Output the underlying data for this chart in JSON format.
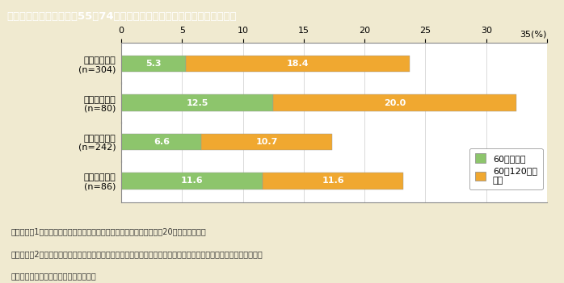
{
  "title": "第１－５図　単身世帯（55～74歳）における低所得層の割合（年間収入）",
  "title_bg_color": "#8B7355",
  "title_text_color": "#FFFFFF",
  "bg_color": "#F0EAD0",
  "chart_bg_color": "#FFFFFF",
  "categories": [
    "女性単身世帯\n(n=304)",
    "うち離別女性\n(n=80)",
    "男性単身世帯\n(n=242)",
    "うち未婚男性\n(n=86)"
  ],
  "green_values": [
    5.3,
    12.5,
    6.6,
    11.6
  ],
  "orange_values": [
    18.4,
    20.0,
    10.7,
    11.6
  ],
  "green_color": "#8DC56C",
  "orange_color": "#F0A830",
  "green_label": "60万円未満",
  "orange_label": "60～120万円\n未満",
  "xlim": [
    0,
    35
  ],
  "xticks": [
    0,
    5,
    10,
    15,
    20,
    25,
    30,
    35
  ],
  "footnote_line1": "（備考）　1．内閣府「高齢男女の自立した生活に関する調査」（平成20年）より作成。",
  "footnote_line2": "　　　　　2．「収入」は税込みであり，就業による収入，年金等による収入のほか，預貯金の引き出し，家賃収入や",
  "footnote_line3": "　　　　　　利子等による収入も含む。"
}
